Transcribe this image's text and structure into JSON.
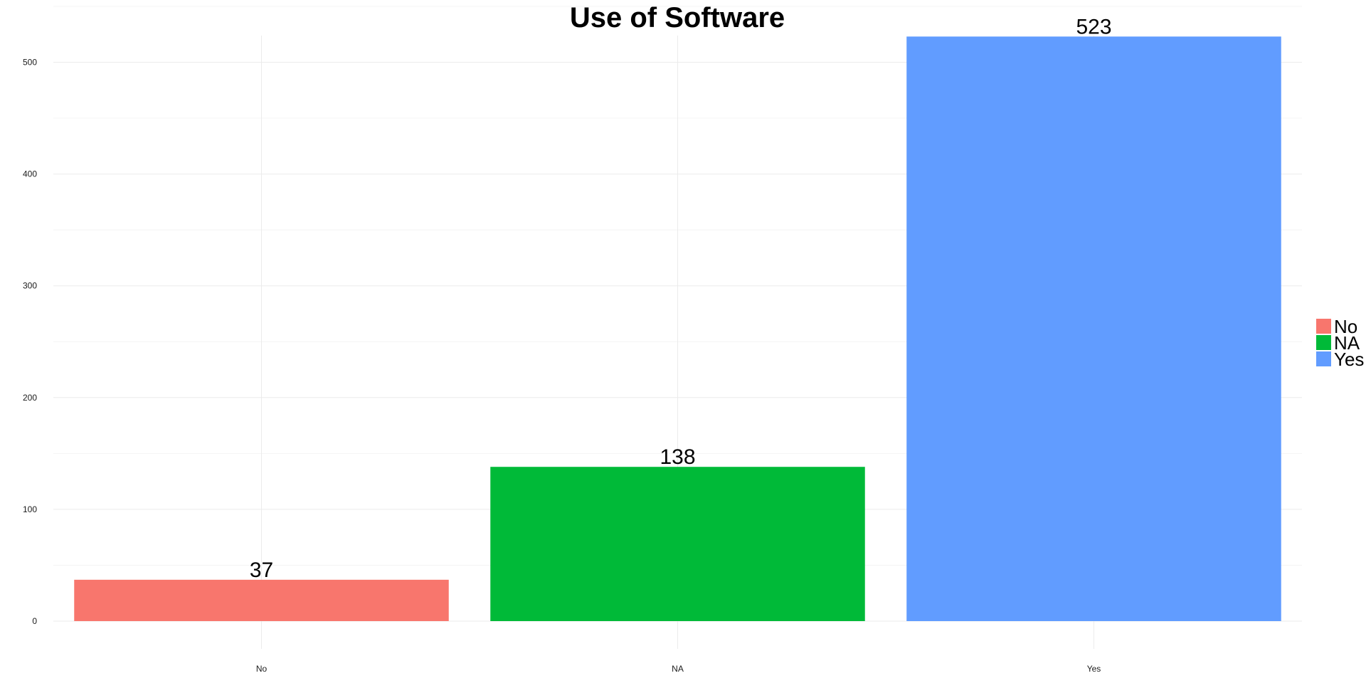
{
  "chart_data": {
    "type": "bar",
    "title": "Use of Software",
    "xlabel": "",
    "ylabel": "",
    "categories": [
      "No",
      "NA",
      "Yes"
    ],
    "values": [
      37,
      138,
      523
    ],
    "colors": [
      "#F8766D",
      "#00BA38",
      "#619CFF"
    ],
    "ylim": [
      0,
      550
    ],
    "yticks": [
      0,
      100,
      200,
      300,
      400,
      500
    ],
    "ytick_labels": [
      "0",
      "100",
      "200",
      "300",
      "400",
      "500"
    ],
    "grid": true,
    "legend": {
      "placement": "right",
      "entries": [
        "No",
        "NA",
        "Yes"
      ]
    }
  }
}
